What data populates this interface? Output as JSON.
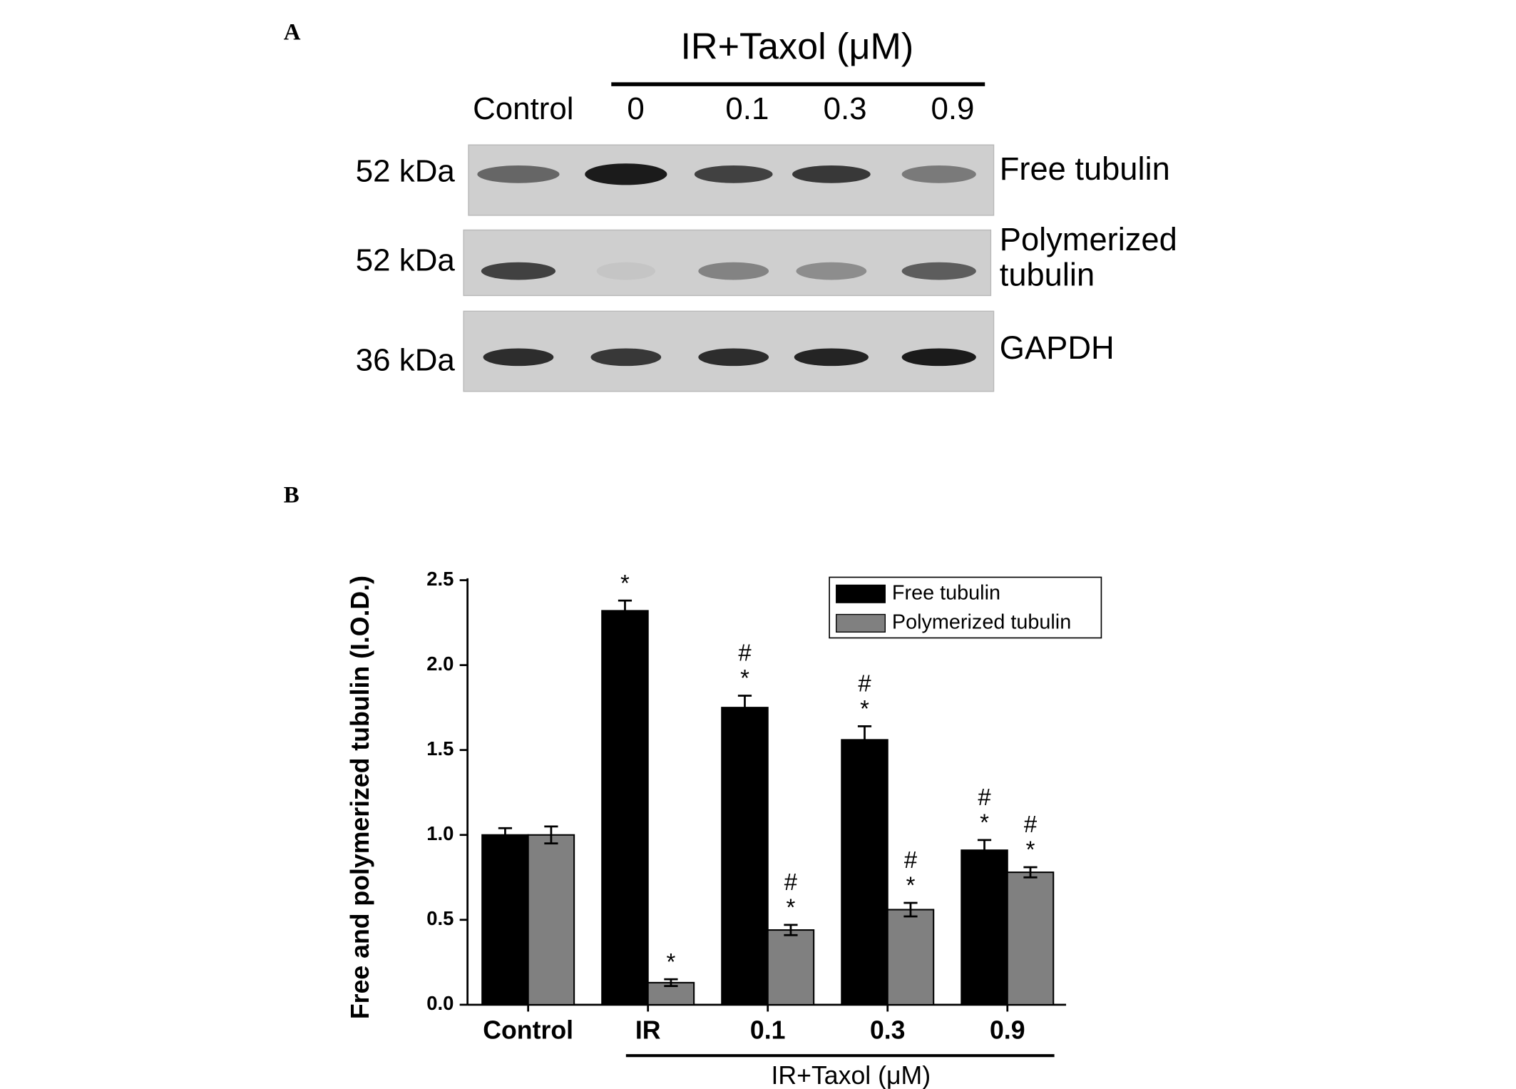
{
  "blot": {
    "panel_label": "A",
    "treatment_label": "IR+Taxol (μM)",
    "lanes": [
      "Control",
      "0",
      "0.1",
      "0.3",
      "0.9"
    ],
    "rows": [
      {
        "marker": "52 kDa",
        "label_lines": [
          "Free tubulin"
        ]
      },
      {
        "marker": "52 kDa",
        "label_lines": [
          "Polymerized",
          "tubulin"
        ]
      },
      {
        "marker": "36 kDa",
        "label_lines": [
          "GAPDH"
        ]
      }
    ]
  },
  "chart_data": {
    "type": "bar",
    "panel_label": "B",
    "y_label": "Free and polymerized tubulin (I.O.D.)",
    "categories": [
      "Control",
      "IR",
      "0.1",
      "0.3",
      "0.9"
    ],
    "group_label": "IR+Taxol (μM)",
    "series": [
      {
        "name": "Free tubulin",
        "color": "#000000",
        "values": [
          1.0,
          2.32,
          1.75,
          1.56,
          0.91
        ],
        "errors": [
          0.04,
          0.06,
          0.07,
          0.08,
          0.06
        ],
        "significance": [
          null,
          [
            "*"
          ],
          [
            "#",
            "*"
          ],
          [
            "#",
            "*"
          ],
          [
            "#",
            "*"
          ]
        ]
      },
      {
        "name": "Polymerized tubulin",
        "color": "#808080",
        "values": [
          1.0,
          0.13,
          0.44,
          0.56,
          0.78
        ],
        "errors": [
          0.05,
          0.02,
          0.03,
          0.04,
          0.03
        ],
        "significance": [
          null,
          [
            "*"
          ],
          [
            "#",
            "*"
          ],
          [
            "#",
            "*"
          ],
          [
            "#",
            "*"
          ]
        ]
      }
    ],
    "ylim": [
      0,
      2.5
    ],
    "yticks": [
      {
        "value": 0,
        "label": "0.0"
      },
      0.5,
      {
        "value": 1,
        "label": "1.0"
      },
      1.5,
      {
        "value": 2,
        "label": "2.0"
      },
      2.5
    ],
    "legend": "upper right"
  }
}
